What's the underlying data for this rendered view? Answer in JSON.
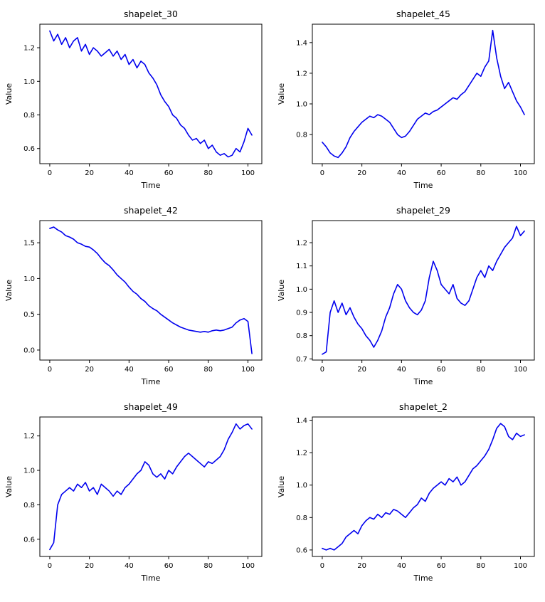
{
  "page": {
    "background": "#ffffff"
  },
  "style": {
    "line_color": "#0000ee",
    "axis_color": "#000000",
    "text_color": "#000000",
    "title_font_size": 12.5,
    "tick_font_size": 10,
    "label_font_size": 11
  },
  "chart_data": [
    {
      "type": "line",
      "title": "shapelet_30",
      "xlabel": "Time",
      "ylabel": "Value",
      "xlim": [
        -5,
        107
      ],
      "ylim": [
        0.51,
        1.34
      ],
      "xticks": [
        0,
        20,
        40,
        60,
        80,
        100
      ],
      "yticks": [
        0.6,
        0.8,
        1.0,
        1.2
      ],
      "x_start": 0,
      "x_step": 2,
      "values": [
        1.3,
        1.24,
        1.28,
        1.22,
        1.26,
        1.2,
        1.24,
        1.26,
        1.18,
        1.22,
        1.16,
        1.2,
        1.18,
        1.15,
        1.17,
        1.19,
        1.15,
        1.18,
        1.13,
        1.16,
        1.1,
        1.13,
        1.08,
        1.12,
        1.1,
        1.05,
        1.02,
        0.98,
        0.92,
        0.88,
        0.85,
        0.8,
        0.78,
        0.74,
        0.72,
        0.68,
        0.65,
        0.66,
        0.63,
        0.65,
        0.6,
        0.62,
        0.58,
        0.56,
        0.57,
        0.55,
        0.56,
        0.6,
        0.58,
        0.64,
        0.72,
        0.68
      ]
    },
    {
      "type": "line",
      "title": "shapelet_45",
      "xlabel": "Time",
      "ylabel": "Value",
      "xlim": [
        -5,
        107
      ],
      "ylim": [
        0.61,
        1.52
      ],
      "xticks": [
        0,
        20,
        40,
        60,
        80,
        100
      ],
      "yticks": [
        0.8,
        1.0,
        1.2,
        1.4
      ],
      "x_start": 0,
      "x_step": 2,
      "values": [
        0.75,
        0.72,
        0.68,
        0.66,
        0.65,
        0.68,
        0.72,
        0.78,
        0.82,
        0.85,
        0.88,
        0.9,
        0.92,
        0.91,
        0.93,
        0.92,
        0.9,
        0.88,
        0.84,
        0.8,
        0.78,
        0.79,
        0.82,
        0.86,
        0.9,
        0.92,
        0.94,
        0.93,
        0.95,
        0.96,
        0.98,
        1.0,
        1.02,
        1.04,
        1.03,
        1.06,
        1.08,
        1.12,
        1.16,
        1.2,
        1.18,
        1.24,
        1.28,
        1.48,
        1.3,
        1.18,
        1.1,
        1.14,
        1.08,
        1.02,
        0.98,
        0.93
      ]
    },
    {
      "type": "line",
      "title": "shapelet_42",
      "xlabel": "Time",
      "ylabel": "Value",
      "xlim": [
        -5,
        107
      ],
      "ylim": [
        -0.14,
        1.81
      ],
      "xticks": [
        0,
        20,
        40,
        60,
        80,
        100
      ],
      "yticks": [
        0.0,
        0.5,
        1.0,
        1.5
      ],
      "x_start": 0,
      "x_step": 2,
      "values": [
        1.7,
        1.72,
        1.68,
        1.65,
        1.6,
        1.58,
        1.55,
        1.5,
        1.48,
        1.45,
        1.44,
        1.4,
        1.35,
        1.28,
        1.22,
        1.18,
        1.12,
        1.05,
        1.0,
        0.95,
        0.88,
        0.82,
        0.78,
        0.72,
        0.68,
        0.62,
        0.58,
        0.55,
        0.5,
        0.46,
        0.42,
        0.38,
        0.35,
        0.32,
        0.3,
        0.28,
        0.27,
        0.26,
        0.25,
        0.26,
        0.25,
        0.27,
        0.28,
        0.27,
        0.28,
        0.3,
        0.32,
        0.38,
        0.42,
        0.44,
        0.4,
        -0.05
      ]
    },
    {
      "type": "line",
      "title": "shapelet_29",
      "xlabel": "Time",
      "ylabel": "Value",
      "xlim": [
        -5,
        107
      ],
      "ylim": [
        0.695,
        1.295
      ],
      "xticks": [
        0,
        20,
        40,
        60,
        80,
        100
      ],
      "yticks": [
        0.7,
        0.8,
        0.9,
        1.0,
        1.1,
        1.2
      ],
      "x_start": 0,
      "x_step": 2,
      "values": [
        0.72,
        0.73,
        0.9,
        0.95,
        0.9,
        0.94,
        0.89,
        0.92,
        0.88,
        0.85,
        0.83,
        0.8,
        0.78,
        0.75,
        0.78,
        0.82,
        0.88,
        0.92,
        0.98,
        1.02,
        1.0,
        0.95,
        0.92,
        0.9,
        0.89,
        0.91,
        0.95,
        1.05,
        1.12,
        1.08,
        1.02,
        1.0,
        0.98,
        1.02,
        0.96,
        0.94,
        0.93,
        0.95,
        1.0,
        1.05,
        1.08,
        1.05,
        1.1,
        1.08,
        1.12,
        1.15,
        1.18,
        1.2,
        1.22,
        1.27,
        1.23,
        1.25
      ]
    },
    {
      "type": "line",
      "title": "shapelet_49",
      "xlabel": "Time",
      "ylabel": "Value",
      "xlim": [
        -5,
        107
      ],
      "ylim": [
        0.5,
        1.31
      ],
      "xticks": [
        0,
        20,
        40,
        60,
        80,
        100
      ],
      "yticks": [
        0.6,
        0.8,
        1.0,
        1.2
      ],
      "x_start": 0,
      "x_step": 2,
      "values": [
        0.54,
        0.58,
        0.8,
        0.86,
        0.88,
        0.9,
        0.88,
        0.92,
        0.9,
        0.93,
        0.88,
        0.9,
        0.86,
        0.92,
        0.9,
        0.88,
        0.85,
        0.88,
        0.86,
        0.9,
        0.92,
        0.95,
        0.98,
        1.0,
        1.05,
        1.03,
        0.98,
        0.96,
        0.98,
        0.95,
        1.0,
        0.98,
        1.02,
        1.05,
        1.08,
        1.1,
        1.08,
        1.06,
        1.04,
        1.02,
        1.05,
        1.04,
        1.06,
        1.08,
        1.12,
        1.18,
        1.22,
        1.27,
        1.24,
        1.26,
        1.27,
        1.24
      ]
    },
    {
      "type": "line",
      "title": "shapelet_2",
      "xlabel": "Time",
      "ylabel": "Value",
      "xlim": [
        -5,
        107
      ],
      "ylim": [
        0.56,
        1.42
      ],
      "xticks": [
        0,
        20,
        40,
        60,
        80,
        100
      ],
      "yticks": [
        0.6,
        0.8,
        1.0,
        1.2,
        1.4
      ],
      "x_start": 0,
      "x_step": 2,
      "values": [
        0.61,
        0.6,
        0.61,
        0.6,
        0.62,
        0.64,
        0.68,
        0.7,
        0.72,
        0.7,
        0.75,
        0.78,
        0.8,
        0.79,
        0.82,
        0.8,
        0.83,
        0.82,
        0.85,
        0.84,
        0.82,
        0.8,
        0.83,
        0.86,
        0.88,
        0.92,
        0.9,
        0.95,
        0.98,
        1.0,
        1.02,
        1.0,
        1.04,
        1.02,
        1.05,
        1.0,
        1.02,
        1.06,
        1.1,
        1.12,
        1.15,
        1.18,
        1.22,
        1.28,
        1.35,
        1.38,
        1.36,
        1.3,
        1.28,
        1.32,
        1.3,
        1.31
      ]
    }
  ]
}
